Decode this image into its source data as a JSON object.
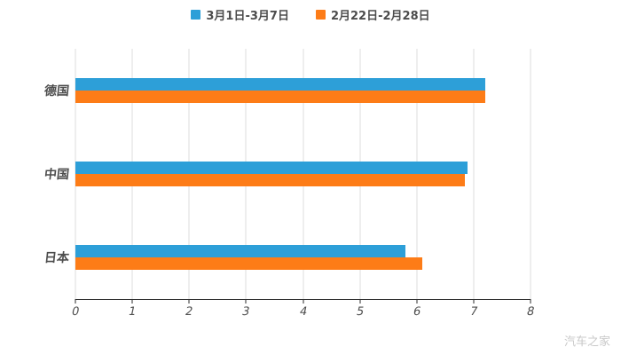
{
  "watermark": "汽车之家",
  "legend": [
    {
      "label": "3月1日-3月7日",
      "color": "#2d9fd8"
    },
    {
      "label": "2月22日-2月28日",
      "color": "#fd7c17"
    }
  ],
  "chart_data": {
    "type": "bar",
    "orientation": "horizontal",
    "title": "",
    "xlabel": "",
    "ylabel": "",
    "categories": [
      "德国",
      "中国",
      "日本"
    ],
    "series": [
      {
        "name": "3月1日-3月7日",
        "color": "#2d9fd8",
        "values": [
          7.2,
          6.9,
          5.8
        ]
      },
      {
        "name": "2月22日-2月28日",
        "color": "#fd7c17",
        "values": [
          7.2,
          6.85,
          6.1
        ]
      }
    ],
    "xlim": [
      0,
      8
    ],
    "xticks": [
      0,
      1,
      2,
      3,
      4,
      5,
      6,
      7,
      8
    ],
    "grid": true,
    "legend_position": "top"
  }
}
